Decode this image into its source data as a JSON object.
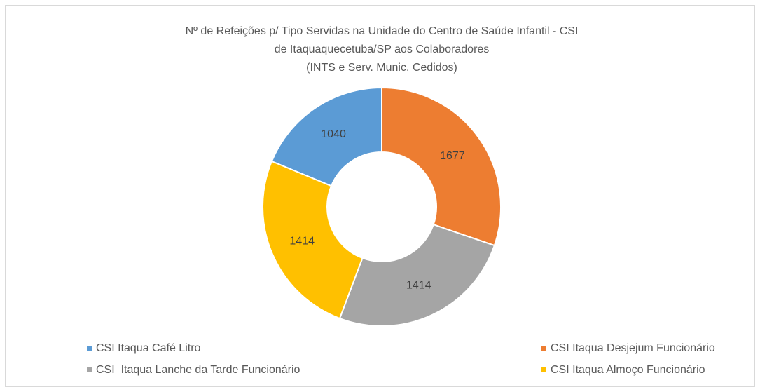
{
  "chart_data": {
    "type": "donut",
    "title": [
      "Nº de Refeições p/ Tipo Servidas na Unidade do Centro de Saúde Infantil - CSI",
      "de Itaquaquecetuba/SP aos Colaboradores",
      "(INTS e Serv. Munic. Cedidos)"
    ],
    "categories": [
      "CSI Itaqua Café Litro",
      "CSI Itaqua Desjejum Funcionário",
      "CSI  Itaqua Lanche da Tarde Funcionário",
      "CSI Itaqua Almoço Funcionário"
    ],
    "values": [
      1040,
      1677,
      1414,
      1414
    ],
    "colors": [
      "#5b9bd5",
      "#ed7d31",
      "#a5a5a5",
      "#ffc000"
    ],
    "legend": "bottom"
  }
}
